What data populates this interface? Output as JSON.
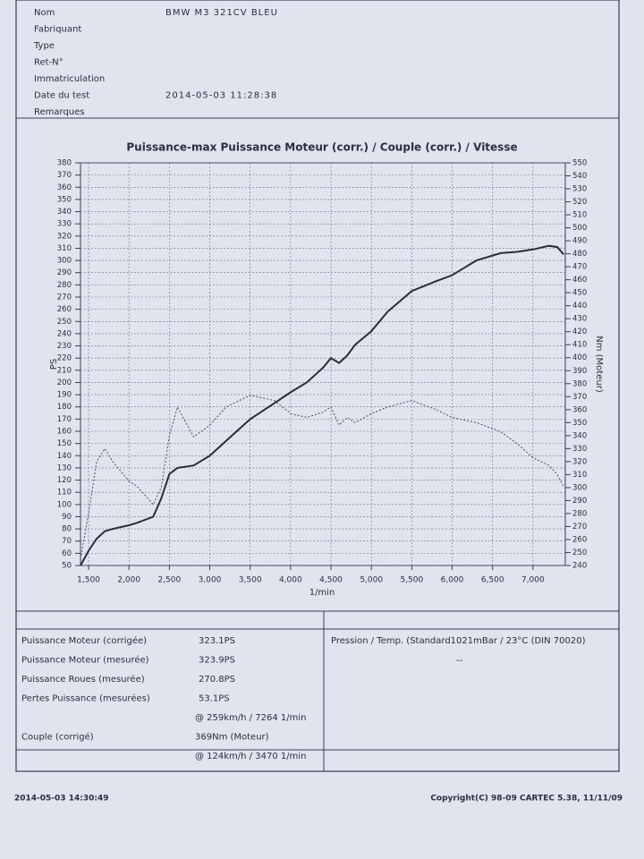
{
  "header": {
    "fields": [
      {
        "label": "Nom",
        "value": "BMW M3 321CV BLEU"
      },
      {
        "label": "Fabriquant"
      },
      {
        "label": "Type"
      },
      {
        "label": "Ret-N°"
      },
      {
        "label": "Immatriculation"
      },
      {
        "label": "Date du test",
        "value": "2014-05-03 11:28:38"
      },
      {
        "label": "Remarques"
      }
    ]
  },
  "chart_data": {
    "type": "line",
    "title": "Puissance-max Puissance Moteur (corr.) / Couple (corr.) / Vitesse",
    "x_label": "1/min",
    "y_label": "PS",
    "y2_label": "Nm (Moteur)",
    "x": [
      1400,
      1500,
      1600,
      1700,
      1800,
      2000,
      2100,
      2300,
      2400,
      2500,
      2600,
      2800,
      3000,
      3200,
      3500,
      3800,
      4000,
      4200,
      4400,
      4500,
      4600,
      4700,
      4800,
      5000,
      5200,
      5500,
      5800,
      6000,
      6300,
      6600,
      6800,
      7000,
      7200,
      7300,
      7380
    ],
    "series": [
      {
        "color": "#2a2d38",
        "style": "solid",
        "values": [
          50,
          62,
          72,
          78,
          80,
          83,
          85,
          90,
          105,
          125,
          130,
          132,
          140,
          152,
          170,
          183,
          192,
          200,
          212,
          220,
          216,
          222,
          231,
          242,
          258,
          275,
          283,
          288,
          300,
          306,
          307,
          309,
          312,
          311,
          305
        ]
      },
      {
        "color": "#4a4e5c",
        "style": "dotted",
        "axis": "y2",
        "values": [
          245,
          280,
          320,
          330,
          320,
          305,
          301,
          287,
          300,
          340,
          362,
          339,
          348,
          362,
          371,
          367,
          357,
          354,
          358,
          362,
          348,
          354,
          350,
          357,
          362,
          367,
          360,
          354,
          350,
          343,
          334,
          323,
          317,
          310,
          301
        ]
      }
    ],
    "xlim": [
      1400,
      7400
    ],
    "xticks": [
      {
        "value": 1500,
        "label": "1,500"
      },
      {
        "value": 2000,
        "label": "2,000"
      },
      {
        "value": 2500,
        "label": "2,500"
      },
      {
        "value": 3000,
        "label": "3,000"
      },
      {
        "value": 3500,
        "label": "3,500"
      },
      {
        "value": 4000,
        "label": "4,000"
      },
      {
        "value": 4500,
        "label": "4,500"
      },
      {
        "value": 5000,
        "label": "5,000"
      },
      {
        "value": 5500,
        "label": "5,500"
      },
      {
        "value": 6000,
        "label": "6,000"
      },
      {
        "value": 6500,
        "label": "6,500"
      },
      {
        "value": 7000,
        "label": "7,000"
      }
    ],
    "ylim": [
      50,
      380
    ],
    "yticks": [
      50,
      60,
      70,
      80,
      90,
      100,
      110,
      120,
      130,
      140,
      150,
      160,
      170,
      180,
      190,
      200,
      210,
      220,
      230,
      240,
      250,
      260,
      270,
      280,
      290,
      300,
      310,
      320,
      330,
      340,
      350,
      360,
      370,
      380
    ],
    "y2lim": [
      240,
      550
    ],
    "y2ticks": [
      240,
      250,
      260,
      270,
      280,
      290,
      300,
      310,
      320,
      330,
      340,
      350,
      360,
      370,
      380,
      390,
      400,
      410,
      420,
      430,
      440,
      450,
      460,
      470,
      480,
      490,
      500,
      510,
      520,
      530,
      540,
      550
    ],
    "grid": true
  },
  "results": {
    "rows": [
      {
        "label": "Puissance Moteur (corrigée)",
        "value": "323.1PS"
      },
      {
        "label": "Puissance Moteur (mesurée)",
        "value": "323.9PS"
      },
      {
        "label": "Puissance Roues (mesurée)",
        "value": "270.8PS"
      },
      {
        "label": "Pertes Puissance (mesurées)",
        "value": "53.1PS"
      },
      {
        "value": "@ 259km/h / 7264 1/min"
      },
      {
        "label": "Couple (corrigé)",
        "value": "369Nm (Moteur)"
      },
      {
        "value": "@ 124km/h / 3470 1/min"
      }
    ],
    "conditions": [
      "Pression / Temp. (Standard1021mBar / 23°C  (DIN 70020)",
      "--"
    ]
  },
  "footer": {
    "printed": "2014-05-03 14:30:49",
    "copyright": "Copyright(C) 98-09 CARTEC 5.38, 11/11/09"
  }
}
